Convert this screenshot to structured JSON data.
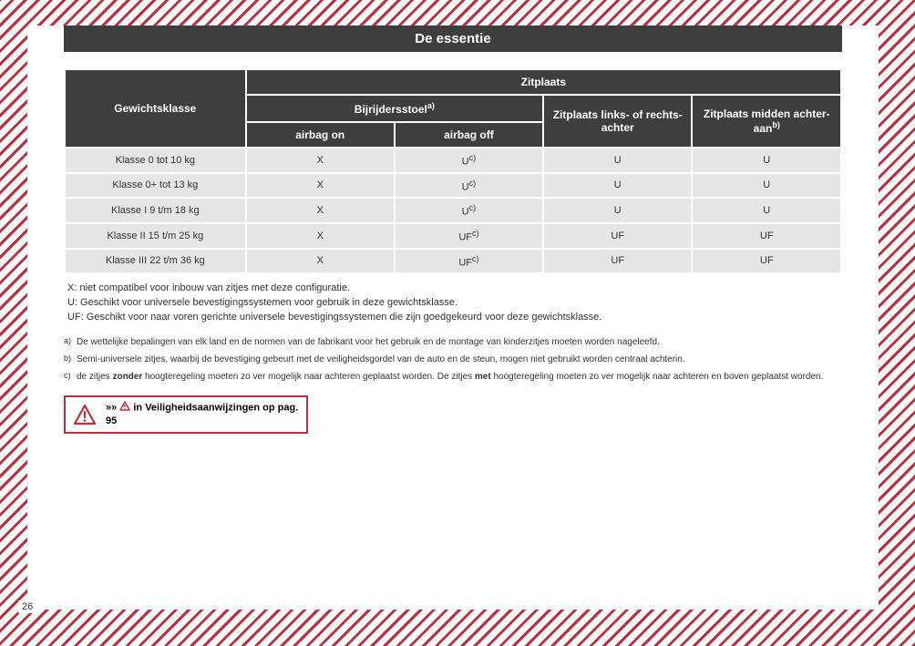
{
  "title": "De essentie",
  "table": {
    "header": {
      "col1": "Gewichtsklasse",
      "topspan": "Zitplaats",
      "h1": "Bijrijdersstoel",
      "h1_sup": "a)",
      "h2": "Zitplaats links- of rechts-achter",
      "h3": "Zitplaats midden achter-aan",
      "h3_sup": "b)",
      "sub1": "airbag on",
      "sub2": "airbag off"
    },
    "rows": [
      {
        "label": "Klasse 0 tot 10 kg",
        "c1": "X",
        "c2": "U",
        "c2_sup": "c)",
        "c3": "U",
        "c4": "U"
      },
      {
        "label": "Klasse 0+ tot 13 kg",
        "c1": "X",
        "c2": "U",
        "c2_sup": "c)",
        "c3": "U",
        "c4": "U"
      },
      {
        "label": "Klasse I 9 t/m 18 kg",
        "c1": "X",
        "c2": "U",
        "c2_sup": "c)",
        "c3": "U",
        "c4": "U"
      },
      {
        "label": "Klasse II 15 t/m 25 kg",
        "c1": "X",
        "c2": "UF",
        "c2_sup": "c)",
        "c3": "UF",
        "c4": "UF"
      },
      {
        "label": "Klasse III 22 t/m 36 kg",
        "c1": "X",
        "c2": "UF",
        "c2_sup": "c)",
        "c3": "UF",
        "c4": "UF"
      }
    ]
  },
  "legend": {
    "x": "X: niet compatibel voor inbouw van zitjes met deze configuratie.",
    "u": "U: Geschikt voor universele bevestigingssystemen voor gebruik in deze gewichtsklasse.",
    "uf": "UF: Geschikt voor naar voren gerichte universele bevestigingssystemen die zijn goedgekeurd voor deze gewichtsklasse."
  },
  "footnotes": {
    "a": "De wettelijke bepalingen van elk land en de normen van de fabrikant voor het gebruik en de montage van kinderzitjes moeten worden nageleefd.",
    "b": "Semi-universele zitjes, waarbij de bevestiging gebeurt met de veiligheidsgordel van de auto en de steun, mogen niet gebruikt worden centraal achterin.",
    "c_pre": "de zitjes ",
    "c_b1": "zonder",
    "c_mid": " hoogteregeling moeten zo ver mogelijk naar achteren geplaatst worden. De zitjes ",
    "c_b2": "met",
    "c_post": " hoogteregeling moeten zo ver mogelijk naar achteren en boven geplaatst worden."
  },
  "warning": {
    "arrows": "»»",
    "text": " in Veiligheidsaanwijzingen op pag. 95"
  },
  "page_number": "26",
  "colors": {
    "accent": "#b8313e",
    "header_bg": "#3e3e3e",
    "cell_bg": "#e6e6e6"
  }
}
